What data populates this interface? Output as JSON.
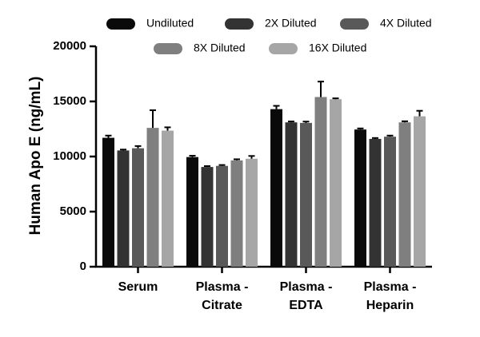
{
  "chart_data": {
    "type": "bar",
    "title": "",
    "xlabel": "",
    "ylabel": "Human Apo E (ng/mL)",
    "ylim": [
      0,
      20000
    ],
    "yticks": [
      "0",
      "5000",
      "10000",
      "15000",
      "20000"
    ],
    "ytick_values": [
      0,
      5000,
      10000,
      15000,
      20000
    ],
    "grid": false,
    "legend_position": "top",
    "categories": [
      [
        "Serum"
      ],
      [
        "Plasma -",
        "Citrate"
      ],
      [
        "Plasma -",
        "EDTA"
      ],
      [
        "Plasma -",
        "Heparin"
      ]
    ],
    "series": [
      {
        "name": "Undiluted",
        "color": "#0a0a0a",
        "values": [
          11700,
          9950,
          14300,
          12450
        ],
        "errors": [
          200,
          120,
          300,
          100
        ]
      },
      {
        "name": "2X Diluted",
        "color": "#333333",
        "values": [
          10550,
          9050,
          13100,
          11600
        ],
        "errors": [
          80,
          80,
          80,
          80
        ]
      },
      {
        "name": "4X Diluted",
        "color": "#595959",
        "values": [
          10750,
          9150,
          13050,
          11800
        ],
        "errors": [
          200,
          80,
          120,
          100
        ]
      },
      {
        "name": "8X Diluted",
        "color": "#7f7f7f",
        "values": [
          12600,
          9650,
          15400,
          13100
        ],
        "errors": [
          1600,
          100,
          1400,
          100
        ]
      },
      {
        "name": "16X Diluted",
        "color": "#a6a6a6",
        "values": [
          12350,
          9800,
          15200,
          13650
        ],
        "errors": [
          300,
          250,
          80,
          500
        ]
      }
    ]
  }
}
